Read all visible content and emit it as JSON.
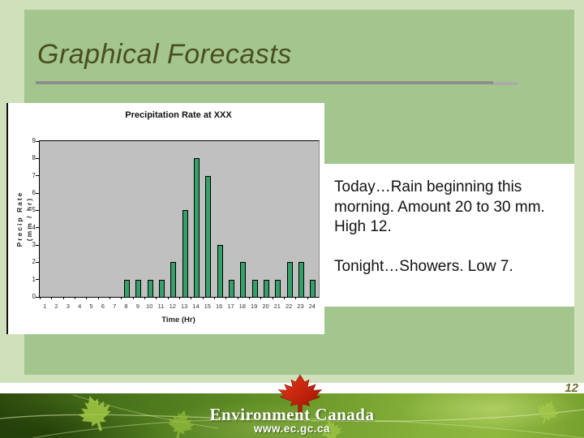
{
  "slide": {
    "title": "Graphical Forecasts",
    "page_number": "12"
  },
  "forecast": {
    "paragraph1": "Today…Rain beginning this morning. Amount 20 to 30 mm. High 12.",
    "paragraph2": "Tonight…Showers. Low 7."
  },
  "footer": {
    "org": "Environment Canada",
    "url": "www.ec.gc.ca",
    "maple_leaf_icon": "maple-leaf-icon",
    "decor_leaf_icon": "leaf-icon"
  },
  "colors": {
    "background": "#cfe0bb",
    "panel": "#a3c68e",
    "title_text": "#4a4f1d",
    "underline": "#8d8e8a",
    "bar_fill": "#35a06a",
    "plot_background": "#c0c0c0",
    "page_number": "#6d6f2e",
    "maple_leaf_red": "#cf1a08",
    "footer_green": "#5a8722"
  },
  "chart_data": {
    "type": "bar",
    "title": "Precipitation Rate at XXX",
    "xlabel": "Time (Hr)",
    "ylabel_line1": "Precip Rate",
    "ylabel_line2": "(mm / hr)",
    "categories": [
      1,
      2,
      3,
      4,
      5,
      6,
      7,
      8,
      9,
      10,
      11,
      12,
      13,
      14,
      15,
      16,
      17,
      18,
      19,
      20,
      21,
      22,
      23,
      24
    ],
    "values": [
      0,
      0,
      0,
      0,
      0,
      0,
      0,
      1,
      1,
      1,
      1,
      2,
      5,
      8,
      7,
      3,
      1,
      2,
      1,
      1,
      1,
      2,
      2,
      1
    ],
    "ylim": [
      0,
      9
    ],
    "yticks": [
      0,
      1,
      2,
      3,
      4,
      5,
      6,
      7,
      8,
      9
    ],
    "grid": false,
    "legend": false
  }
}
